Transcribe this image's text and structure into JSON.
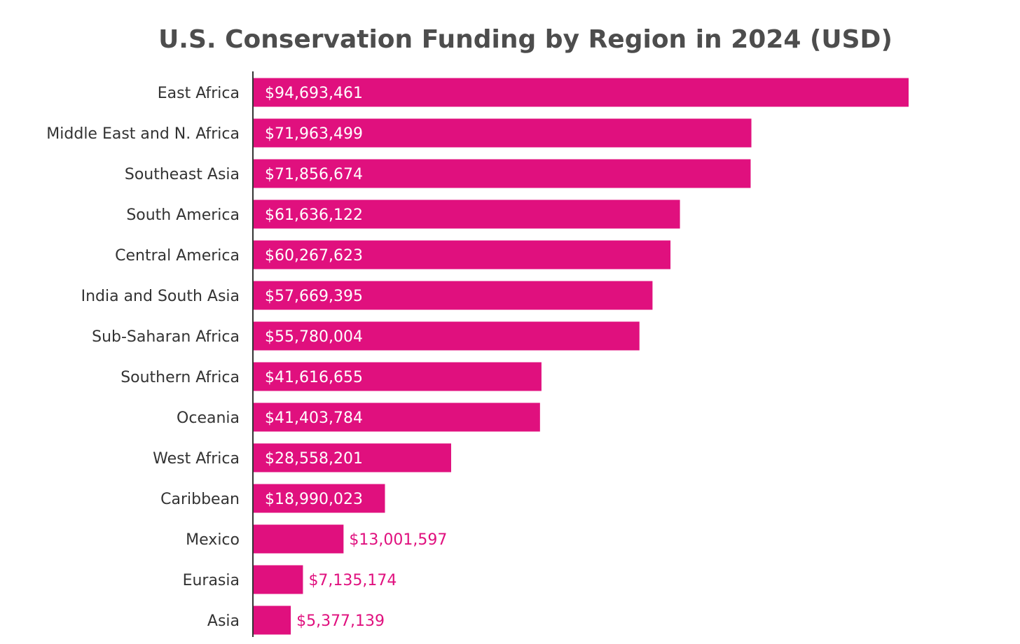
{
  "chart_data": {
    "type": "bar",
    "orientation": "horizontal",
    "title": "U.S. Conservation Funding by Region in 2024 (USD)",
    "xlabel": "",
    "ylabel": "",
    "grid": false,
    "legend": "none",
    "bar_color": "#e0107e",
    "categories": [
      "East Africa",
      "Middle East and N. Africa",
      "Southeast Asia",
      "South America",
      "Central America",
      "India and South Asia",
      "Sub-Saharan Africa",
      "Southern Africa",
      "Oceania",
      "West Africa",
      "Caribbean",
      "Mexico",
      "Eurasia",
      "Asia"
    ],
    "values": [
      94693461,
      71963499,
      71856674,
      61636122,
      60267623,
      57669395,
      55780004,
      41616655,
      41403784,
      28558201,
      18990023,
      13001597,
      7135174,
      5377139
    ],
    "value_labels": [
      "$94,693,461",
      "$71,963,499",
      "$71,856,674",
      "$61,636,122",
      "$60,267,623",
      "$57,669,395",
      "$55,780,004",
      "$41,616,655",
      "$41,403,784",
      "$28,558,201",
      "$18,990,023",
      "$13,001,597",
      "$7,135,174",
      "$5,377,139"
    ]
  }
}
